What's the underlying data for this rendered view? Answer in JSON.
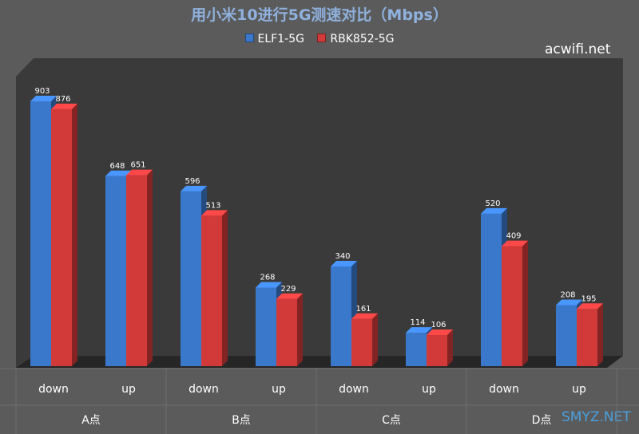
{
  "chart_data": {
    "type": "bar",
    "title": "用小米10进行5G测速对比（Mbps）",
    "groups": [
      "A点",
      "B点",
      "C点",
      "D点"
    ],
    "categories": [
      "down",
      "up",
      "down",
      "up",
      "down",
      "up",
      "down",
      "up"
    ],
    "series": [
      {
        "name": "ELF1-5G",
        "color": "#3a78cc",
        "values": [
          903,
          648,
          596,
          268,
          340,
          114,
          520,
          208
        ]
      },
      {
        "name": "RBK852-5G",
        "color": "#d23a3a",
        "values": [
          876,
          651,
          513,
          229,
          161,
          106,
          409,
          195
        ]
      }
    ],
    "xlabel": "",
    "ylabel": "",
    "ylim": [
      0,
      1000
    ],
    "grid": false,
    "legend_position": "top-center",
    "style": "3d-clustered-column",
    "plot_background": "#3a3a3a"
  },
  "watermarks": {
    "top": "acwifi.net",
    "bottom": "SMYZ.NET"
  }
}
